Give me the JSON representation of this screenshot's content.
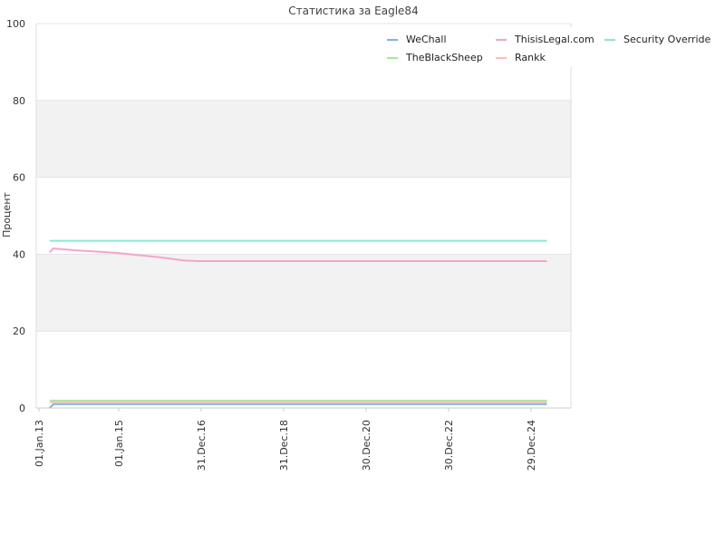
{
  "chart_data": {
    "type": "line",
    "title": "Статистика за Eagle84",
    "ylabel": "Процент",
    "xlabel": "",
    "ylim": [
      0,
      100
    ],
    "y_ticks": [
      "0",
      "20",
      "40",
      "60",
      "80",
      "100"
    ],
    "x_ticks": [
      "01.Jan.13",
      "01.Jan.15",
      "31.Dec.16",
      "31.Dec.18",
      "30.Dec.20",
      "30.Dec.22",
      "29.Dec.24"
    ],
    "x_range": [
      "2013-01-01",
      "2025-12-31"
    ],
    "grid": "horizontal, alternating bands",
    "legend_position": "top-right",
    "series": [
      {
        "name": "WeChall",
        "color": "#7fb2e5",
        "points": [
          [
            "2013-05-01",
            0
          ],
          [
            "2013-06-01",
            1.0
          ],
          [
            "2025-06-01",
            1.0
          ]
        ]
      },
      {
        "name": "ThisisLegal.com",
        "color": "#f4a6c8",
        "points": [
          [
            "2013-05-01",
            40.5
          ],
          [
            "2013-06-01",
            41.5
          ],
          [
            "2014-01-01",
            41.0
          ],
          [
            "2015-01-01",
            40.3
          ],
          [
            "2016-01-01",
            39.2
          ],
          [
            "2016-08-01",
            38.4
          ],
          [
            "2016-12-01",
            38.2
          ],
          [
            "2025-06-01",
            38.2
          ]
        ]
      },
      {
        "name": "Security Override",
        "color": "#8fe6cf",
        "points": [
          [
            "2013-05-01",
            43.5
          ],
          [
            "2025-06-01",
            43.5
          ]
        ]
      },
      {
        "name": "TheBlackSheep",
        "color": "#a8e89a",
        "points": [
          [
            "2013-05-01",
            1.9
          ],
          [
            "2025-06-01",
            1.9
          ]
        ]
      },
      {
        "name": "Rankk",
        "color": "#f7c2b2",
        "points": [
          [
            "2013-05-01",
            1.5
          ],
          [
            "2025-06-01",
            1.5
          ]
        ]
      }
    ]
  }
}
